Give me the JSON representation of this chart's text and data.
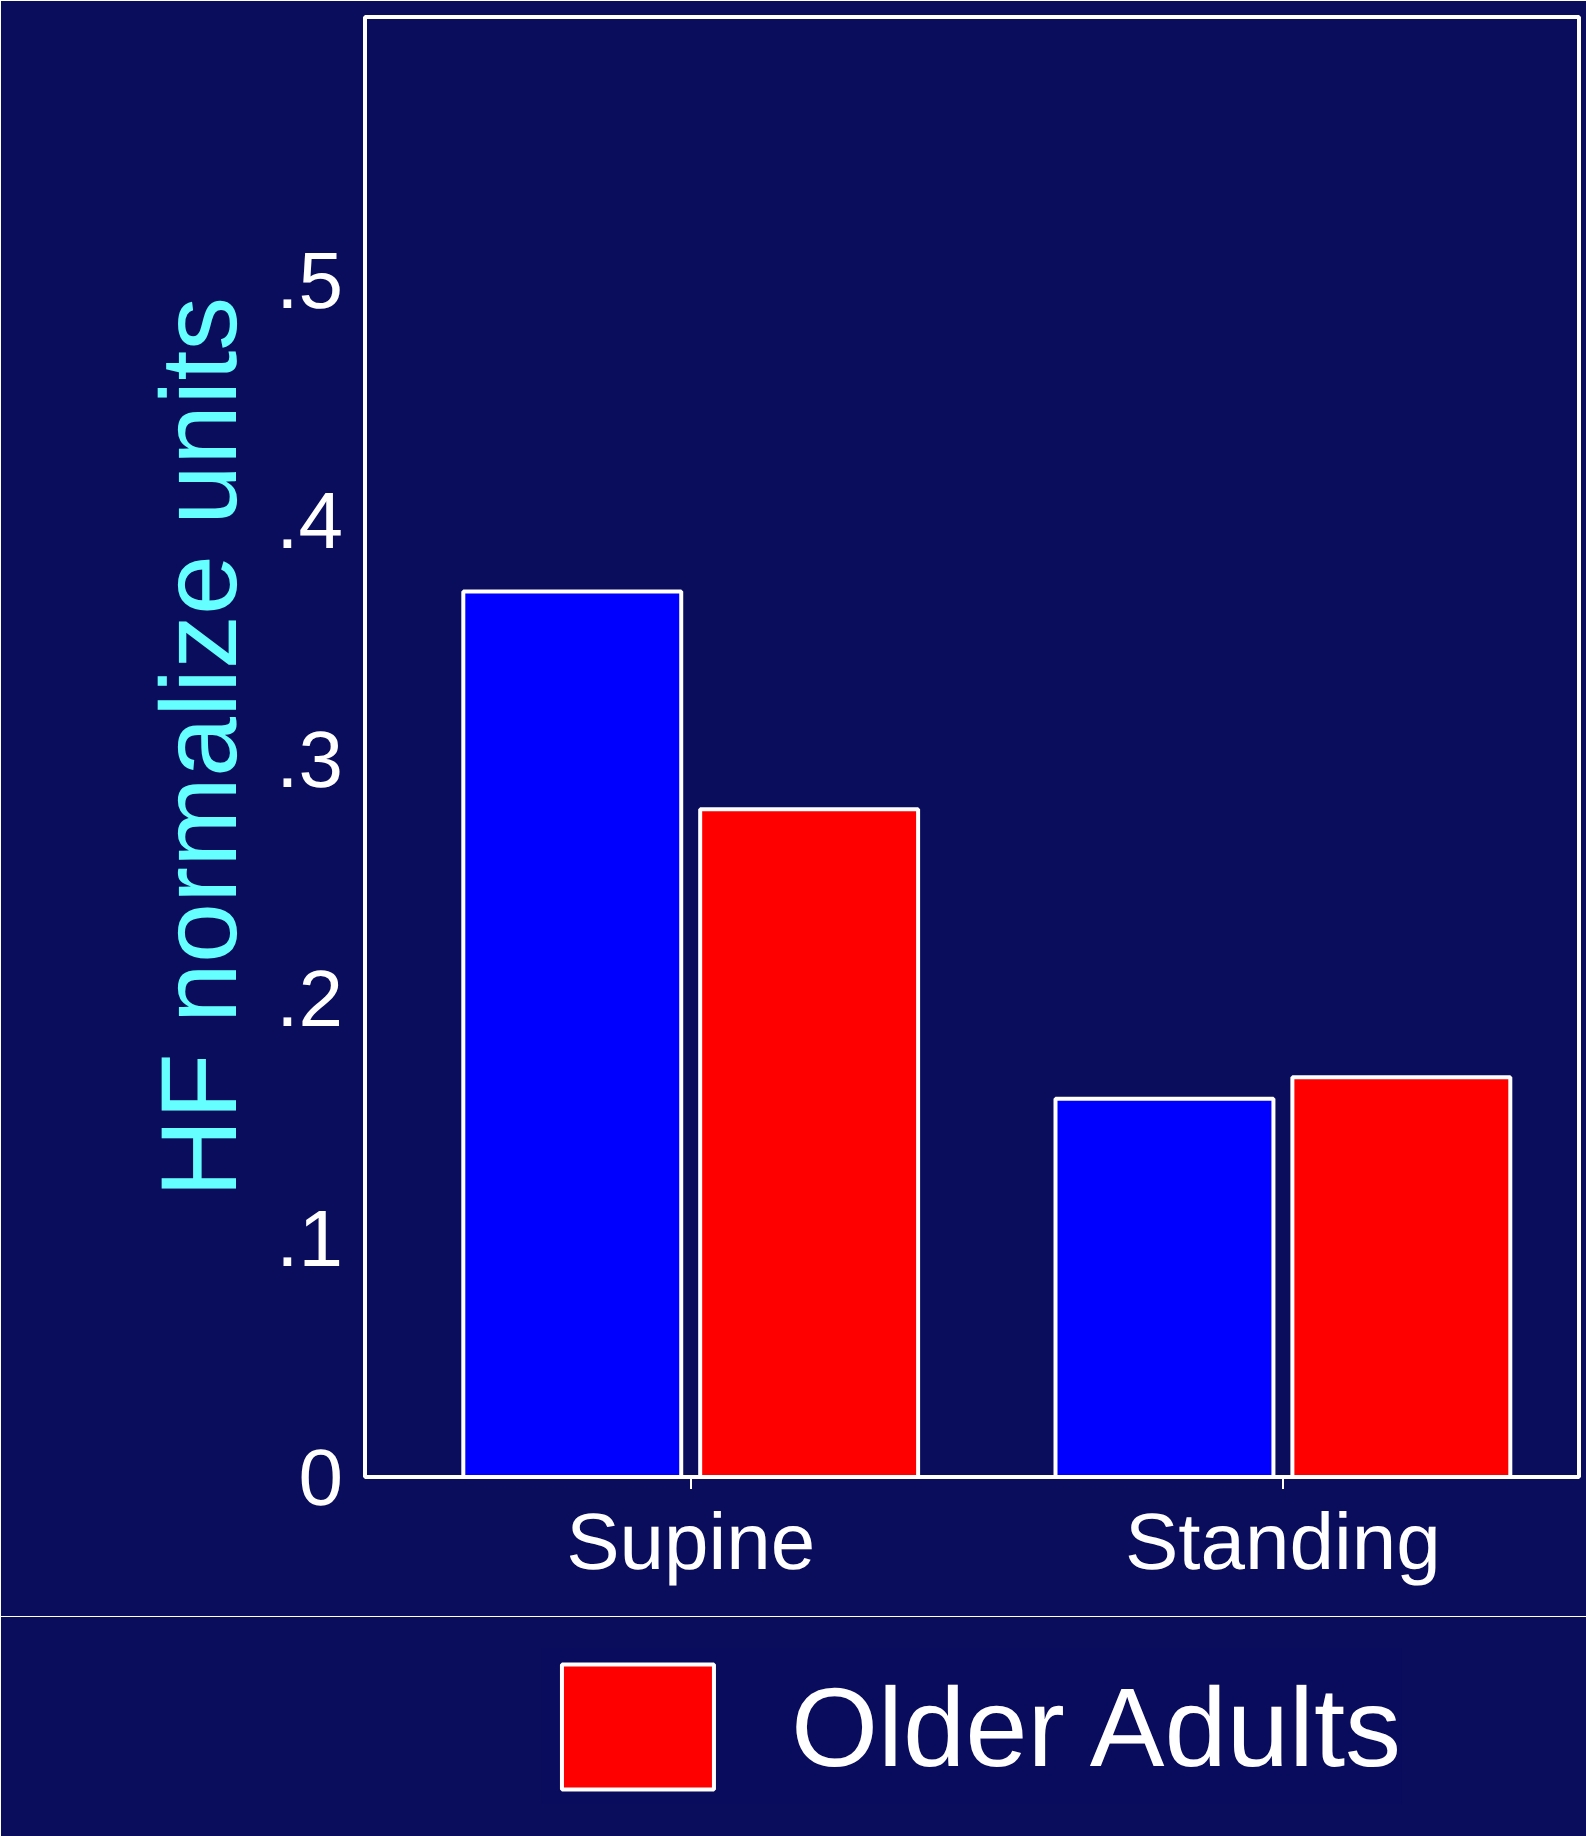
{
  "chart_data": {
    "type": "bar",
    "ylabel": "HF normalize units",
    "categories": [
      "Supine",
      "Standing"
    ],
    "series": [
      {
        "color": "#0000ff",
        "values": [
          0.37,
          0.158
        ]
      },
      {
        "name": "Older Adults",
        "color": "#ff0000",
        "values": [
          0.279,
          0.167
        ]
      }
    ],
    "ylim": [
      0,
      0.61
    ],
    "yticks": [
      0,
      {
        "value": 0.1,
        "label": ".1"
      },
      {
        "value": 0.2,
        "label": ".2"
      },
      {
        "value": 0.3,
        "label": ".3"
      },
      {
        "value": 0.4,
        "label": ".4"
      },
      {
        "value": 0.5,
        "label": ".5"
      }
    ],
    "grid": false,
    "legend": "bottom"
  }
}
